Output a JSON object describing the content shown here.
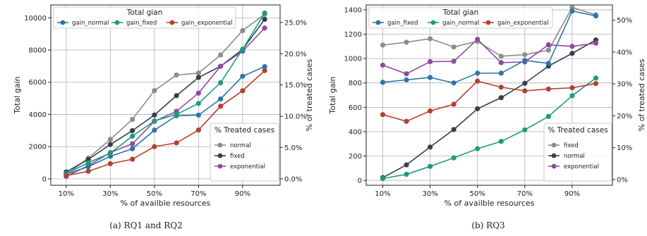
{
  "chart_data": [
    {
      "type": "line",
      "caption": "(a) RQ1 and RQ2",
      "xlabel": "% of availble resources",
      "ylabel": "Total gain",
      "y2label": "% of treated cases",
      "x": [
        10,
        20,
        30,
        40,
        50,
        60,
        70,
        80,
        90,
        100
      ],
      "xticks": [
        "10%",
        "30%",
        "50%",
        "70%",
        "90%"
      ],
      "xtick_values": [
        10,
        30,
        50,
        70,
        90
      ],
      "ylim": [
        -400,
        10800
      ],
      "yticks": [
        "0",
        "2000",
        "4000",
        "6000",
        "8000",
        "10000"
      ],
      "ytick_values": [
        0,
        2000,
        4000,
        6000,
        8000,
        10000
      ],
      "y2lim": [
        -1.03,
        27.8
      ],
      "y2ticks": [
        "0.0%",
        "5.0%",
        "10.0%",
        "15.0%",
        "20.0%",
        "25.0%"
      ],
      "y2tick_values": [
        0,
        5,
        10,
        15,
        20,
        25
      ],
      "grid": true,
      "legend_gain": {
        "title": "Total gian",
        "placement": "top-center",
        "entries": [
          "gain_normal",
          "gain_fixed",
          "gain_exponential"
        ]
      },
      "legend_treated": {
        "title": "% Treated cases",
        "placement": "bottom-right",
        "entries": [
          "normal",
          "fixed",
          "exponential"
        ]
      },
      "series_gain": [
        {
          "name": "gain_normal",
          "color": "#2e75a8",
          "values": [
            300,
            750,
            1400,
            1870,
            3020,
            3920,
            3960,
            4960,
            6370,
            6970
          ]
        },
        {
          "name": "gain_fixed",
          "color": "#1f9a7d",
          "values": [
            330,
            1000,
            1600,
            2650,
            3600,
            4000,
            4680,
            5970,
            8050,
            10300
          ]
        },
        {
          "name": "gain_exponential",
          "color": "#b3412e",
          "values": [
            200,
            470,
            940,
            1220,
            2000,
            2230,
            3030,
            4510,
            5470,
            6720
          ]
        }
      ],
      "series_treated": [
        {
          "name": "normal",
          "color": "#8c8c8c",
          "values": [
            0.7,
            3.3,
            6.3,
            9.5,
            14.1,
            16.6,
            16.9,
            19.8,
            23.7,
            26.3
          ]
        },
        {
          "name": "fixed",
          "color": "#333f50",
          "values": [
            1.1,
            3.1,
            5.5,
            7.7,
            10.2,
            13.3,
            16.2,
            18.0,
            20.7,
            25.5
          ]
        },
        {
          "name": "exponential",
          "color": "#8e4aa0",
          "values": [
            0.4,
            2.1,
            4.2,
            5.6,
            9.2,
            10.8,
            13.7,
            18.0,
            20.4,
            24.1
          ]
        }
      ]
    },
    {
      "type": "line",
      "caption": "(b) RQ3",
      "xlabel": "% of availble resources",
      "ylabel": "Total gain",
      "y2label": "% of treated cases",
      "x": [
        10,
        20,
        30,
        40,
        50,
        60,
        70,
        80,
        90,
        100
      ],
      "xticks": [
        "10%",
        "30%",
        "50%",
        "70%",
        "90%"
      ],
      "xtick_values": [
        10,
        30,
        50,
        70,
        90
      ],
      "ylim": [
        -40,
        1440
      ],
      "yticks": [
        "0",
        "200",
        "400",
        "600",
        "800",
        "1000",
        "1200",
        "1400"
      ],
      "ytick_values": [
        0,
        200,
        400,
        600,
        800,
        1000,
        1200,
        1400
      ],
      "y2lim": [
        -1.8,
        54.8
      ],
      "y2ticks": [
        "0%",
        "10%",
        "20%",
        "30%",
        "40%",
        "50%"
      ],
      "y2tick_values": [
        0,
        10,
        20,
        30,
        40,
        50
      ],
      "grid": true,
      "legend_gain": {
        "title": "Total gian",
        "placement": "top-center",
        "entries": [
          "gain_fixed",
          "gain_normal",
          "gain_exponential"
        ]
      },
      "legend_treated": {
        "title": "% Treated cases",
        "placement": "bottom-right",
        "entries": [
          "fixed",
          "normal",
          "exponential"
        ]
      },
      "series_gain": [
        {
          "name": "gain_fixed",
          "color": "#2e75a8",
          "values": [
            805,
            825,
            845,
            800,
            880,
            880,
            985,
            960,
            1390,
            1350
          ]
        },
        {
          "name": "gain_normal",
          "color": "#1f9a7d",
          "values": [
            15,
            50,
            115,
            185,
            260,
            320,
            415,
            525,
            695,
            840
          ]
        },
        {
          "name": "gain_exponential",
          "color": "#b3412e",
          "values": [
            540,
            485,
            570,
            625,
            815,
            765,
            735,
            750,
            760,
            795
          ]
        }
      ],
      "series_treated": [
        {
          "name": "fixed",
          "color": "#8c8c8c",
          "values": [
            42.2,
            43.1,
            44.2,
            41.6,
            43.4,
            38.7,
            39.2,
            40.6,
            54.0,
            51.7
          ]
        },
        {
          "name": "normal",
          "color": "#333f50",
          "values": [
            0.6,
            4.6,
            10.2,
            15.7,
            22.2,
            25.7,
            30.2,
            35.6,
            39.6,
            43.8
          ]
        },
        {
          "name": "exponential",
          "color": "#8e4aa0",
          "values": [
            35.9,
            33.2,
            37.0,
            37.1,
            44.0,
            36.7,
            36.9,
            42.3,
            41.8,
            42.8
          ]
        }
      ]
    }
  ]
}
